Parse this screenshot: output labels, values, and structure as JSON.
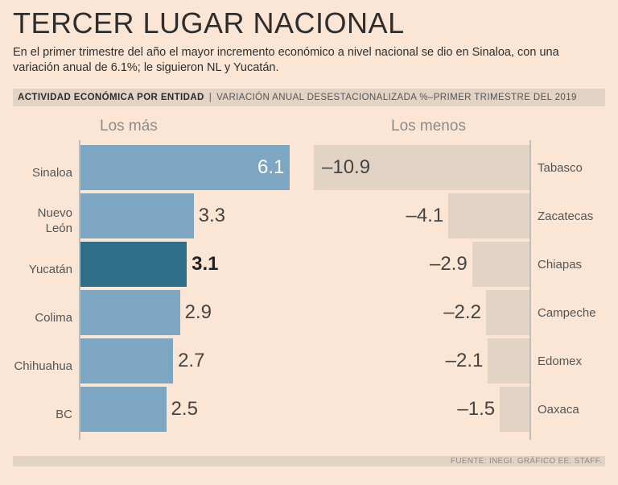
{
  "header": {
    "title": "TERCER LUGAR NACIONAL",
    "subtitle": "En el primer trimestre del año el mayor incremento económico a nivel nacional se dio en Sinaloa, con una variación anual de 6.1%; le siguieron NL y Yucatán."
  },
  "banner": {
    "strong": "ACTIVIDAD ECONÓMICA POR ENTIDAD",
    "separator": "|",
    "weak": "VARIACIÓN ANUAL DESESTACIONALIZADA %–PRIMER TRIMESTRE DEL 2019"
  },
  "footer": {
    "source": "FUENTE: INEGI. GRÁFICO EE: STAFF."
  },
  "colors": {
    "bar": "#7ca6c2",
    "highlight": "#2f6f89",
    "neg": "#e3d3c5",
    "bg": "#fbe6d6"
  },
  "chart_data": [
    {
      "type": "bar",
      "title": "Los más",
      "orientation": "horizontal",
      "categories": [
        "Sinaloa",
        "Nuevo León",
        "Yucatán",
        "Colima",
        "Chihuahua",
        "BC"
      ],
      "label_lines": [
        [
          "Sinaloa"
        ],
        [
          "Nuevo",
          "León"
        ],
        [
          "Yucatán"
        ],
        [
          "Colima"
        ],
        [
          "Chihuahua"
        ],
        [
          "BC"
        ]
      ],
      "values": [
        6.1,
        3.3,
        3.1,
        2.9,
        2.7,
        2.5
      ],
      "value_labels": [
        "6.1",
        "3.3",
        "3.1",
        "2.9",
        "2.7",
        "2.5"
      ],
      "highlight": "Yucatán",
      "xlim": [
        0,
        6.1
      ]
    },
    {
      "type": "bar",
      "title": "Los menos",
      "orientation": "horizontal",
      "categories": [
        "Tabasco",
        "Zacatecas",
        "Chiapas",
        "Campeche",
        "Edomex",
        "Oaxaca"
      ],
      "values": [
        -10.9,
        -4.1,
        -2.9,
        -2.2,
        -2.1,
        -1.5
      ],
      "value_labels": [
        "–10.9",
        "–4.1",
        "–2.9",
        "–2.2",
        "–2.1",
        "–1.5"
      ],
      "xlim": [
        -10.9,
        0
      ]
    }
  ]
}
